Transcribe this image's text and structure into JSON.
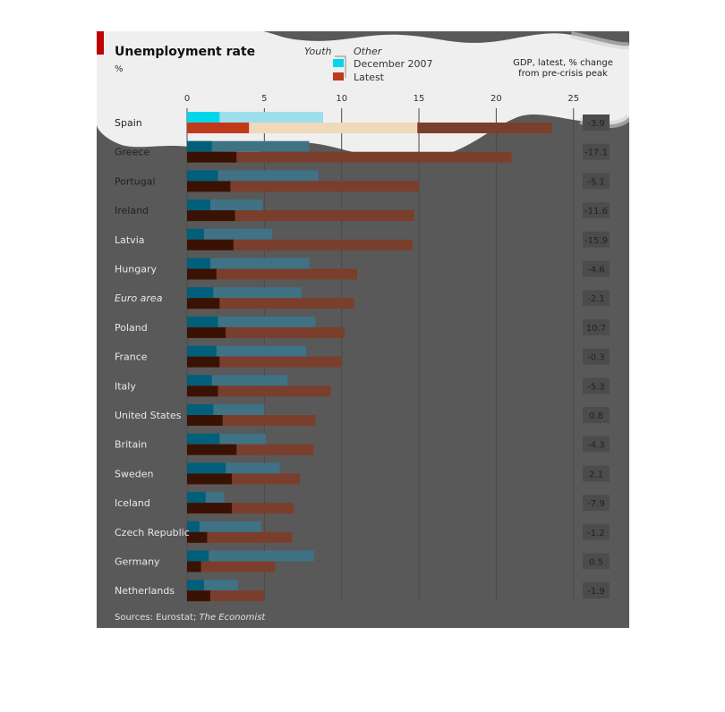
{
  "chart_data": {
    "type": "bar",
    "orientation": "horizontal",
    "title": "Unemployment rate",
    "subtitle": "%",
    "legend": {
      "youth_label": "Youth",
      "other_label": "Other",
      "dec_label": "December 2007",
      "latest_label": "Latest"
    },
    "gdp_header": [
      "GDP, latest, % change",
      "from pre-crisis peak"
    ],
    "source_prefix": "Sources: Eurostat; ",
    "source_italic": "The Economist",
    "xlim": [
      0,
      25
    ],
    "xticks": [
      0,
      5,
      10,
      15,
      20,
      25
    ],
    "categories": [
      "Spain",
      "Greece",
      "Portugal",
      "Ireland",
      "Latvia",
      "Hungary",
      "Euro area",
      "Poland",
      "France",
      "Italy",
      "United States",
      "Britain",
      "Sweden",
      "Iceland",
      "Czech Republic",
      "Germany",
      "Netherlands"
    ],
    "series": [
      {
        "name": "December 2007 · Youth",
        "values": [
          2.1,
          1.6,
          2.0,
          1.5,
          1.1,
          1.5,
          1.7,
          2.0,
          1.9,
          1.6,
          1.7,
          2.1,
          2.5,
          1.2,
          0.8,
          1.4,
          1.1
        ]
      },
      {
        "name": "December 2007 · Other",
        "values": [
          8.8,
          7.9,
          8.5,
          4.9,
          5.5,
          7.9,
          7.4,
          8.3,
          7.7,
          6.5,
          5.0,
          5.1,
          6.0,
          2.4,
          4.8,
          8.2,
          3.3
        ]
      },
      {
        "name": "Latest · Youth",
        "values": [
          4.0,
          3.2,
          2.8,
          3.1,
          3.0,
          1.9,
          2.1,
          2.5,
          2.1,
          2.0,
          2.3,
          3.2,
          2.9,
          2.9,
          1.3,
          0.9,
          1.5
        ]
      },
      {
        "name": "Latest · Other",
        "values": [
          23.6,
          21.0,
          15.0,
          14.7,
          14.6,
          11.0,
          10.8,
          10.2,
          10.0,
          9.3,
          8.3,
          8.2,
          7.3,
          6.9,
          6.8,
          5.7,
          5.0
        ]
      }
    ],
    "gdp_change": [
      "-3.9",
      "-17.1",
      "-5.1",
      "-11.6",
      "-15.9",
      "-4.6",
      "-2.1",
      "10.7",
      "-0.3",
      "-5.3",
      "0.8",
      "-4.3",
      "2.1",
      "-7.9",
      "-1.2",
      "0.5",
      "-1.9"
    ],
    "italic_categories": [
      "Euro area"
    ],
    "colors": {
      "dec_youth": "#005f7a",
      "dec_other": "#3f7285",
      "latest_youth": "#3a1204",
      "latest_other": "#7a3f2c",
      "legend_cyan": "#00d7e8",
      "legend_orange": "#c0391b",
      "background": "#595959",
      "accent_red": "#c00000"
    },
    "grid": true
  }
}
